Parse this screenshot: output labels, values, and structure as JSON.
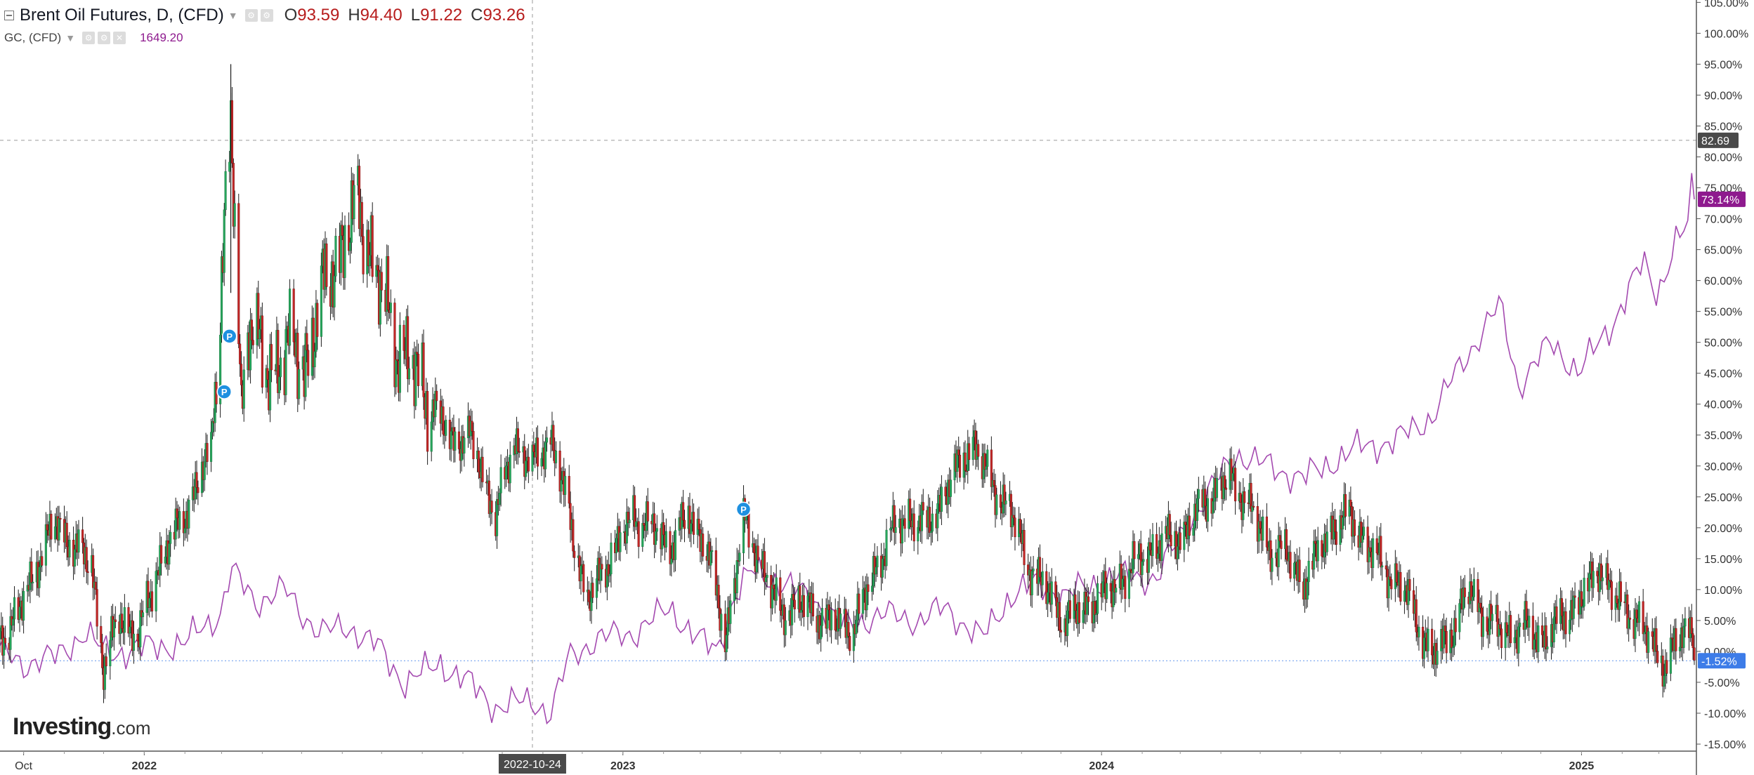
{
  "legend": {
    "main_title": "Brent Oil Futures, D, (CFD)",
    "ohlc": {
      "o_label": "O",
      "o": "93.59",
      "h_label": "H",
      "h": "94.40",
      "l_label": "L",
      "l": "91.22",
      "c_label": "C",
      "c": "93.26"
    },
    "compare_title": "GC, (CFD)",
    "compare_value": "1649.20"
  },
  "logo": {
    "text": "Investing",
    "suffix": ".com"
  },
  "crosshair": {
    "x_label": "2022-10-24",
    "y_label": "82.69"
  },
  "price_tags": {
    "gold": "73.14%",
    "brent": "-1.52%"
  },
  "colors": {
    "up": "#26a65b",
    "up_body": "#1e7a45",
    "down": "#c62828",
    "gold_line": "#a44ab0",
    "gold_tag": "#8e1a8e",
    "brent_tag": "#3d7ce8",
    "crosshair_tag": "#4a4a4a",
    "marker": "#1e90e0"
  },
  "chart_data": {
    "type": "line",
    "description_series": [
      "Brent Oil Futures (candlestick, % change)",
      "GC Gold (line, % change)"
    ],
    "y_axis": {
      "unit": "%",
      "min": -15,
      "max": 105,
      "ticks": [
        -15,
        -10,
        -5,
        0,
        5,
        10,
        15,
        20,
        25,
        30,
        35,
        40,
        45,
        50,
        55,
        60,
        65,
        70,
        75,
        80,
        85,
        90,
        95,
        100,
        105
      ],
      "tick_labels": [
        "-15.00%",
        "-10.00%",
        "-5.00%",
        "0.00%",
        "5.00%",
        "10.00%",
        "15.00%",
        "20.00%",
        "25.00%",
        "30.00%",
        "35.00%",
        "40.00%",
        "45.00%",
        "50.00%",
        "55.00%",
        "60.00%",
        "65.00%",
        "70.00%",
        "75.00%",
        "80.00%",
        "85.00%",
        "90.00%",
        "95.00%",
        "100.00%",
        "105.00%"
      ]
    },
    "x_axis": {
      "min": "2021-09-13",
      "max": "2025-03-28",
      "ticks": [
        {
          "date": "2021-10-01",
          "label": "Oct"
        },
        {
          "date": "2022-01-01",
          "label": "2022"
        },
        {
          "date": "2023-01-01",
          "label": "2023"
        },
        {
          "date": "2024-01-01",
          "label": "2024"
        },
        {
          "date": "2025-01-01",
          "label": "2025"
        }
      ]
    },
    "crosshair_date": "2022-10-24",
    "crosshair_value": 82.69,
    "reference_line": -1.52,
    "markers": [
      {
        "date": "2022-03-03",
        "value": 42,
        "label": "P"
      },
      {
        "date": "2022-03-07",
        "value": 51,
        "label": "P"
      },
      {
        "date": "2023-04-03",
        "value": 23,
        "label": "P"
      }
    ],
    "series": [
      {
        "name": "Brent Oil Futures, D, (CFD)",
        "kind": "candlestick",
        "points": [
          [
            "2021-09-13",
            2
          ],
          [
            "2021-09-27",
            6
          ],
          [
            "2021-10-11",
            14
          ],
          [
            "2021-10-25",
            21
          ],
          [
            "2021-11-08",
            17
          ],
          [
            "2021-11-22",
            14
          ],
          [
            "2021-12-01",
            -3
          ],
          [
            "2021-12-13",
            6
          ],
          [
            "2021-12-27",
            2
          ],
          [
            "2022-01-10",
            13
          ],
          [
            "2022-01-24",
            19
          ],
          [
            "2022-02-07",
            25
          ],
          [
            "2022-02-21",
            33
          ],
          [
            "2022-03-08",
            85
          ],
          [
            "2022-03-16",
            40
          ],
          [
            "2022-03-22",
            55
          ],
          [
            "2022-04-05",
            44
          ],
          [
            "2022-04-19",
            50
          ],
          [
            "2022-05-03",
            46
          ],
          [
            "2022-05-17",
            58
          ],
          [
            "2022-06-01",
            66
          ],
          [
            "2022-06-14",
            72
          ],
          [
            "2022-06-28",
            60
          ],
          [
            "2022-07-12",
            50
          ],
          [
            "2022-07-26",
            45
          ],
          [
            "2022-08-09",
            40
          ],
          [
            "2022-08-23",
            34
          ],
          [
            "2022-09-06",
            35
          ],
          [
            "2022-09-26",
            22
          ],
          [
            "2022-10-10",
            34
          ],
          [
            "2022-10-24",
            30
          ],
          [
            "2022-11-07",
            35
          ],
          [
            "2022-11-21",
            22
          ],
          [
            "2022-12-05",
            8
          ],
          [
            "2022-12-19",
            14
          ],
          [
            "2023-01-09",
            22
          ],
          [
            "2023-01-23",
            20
          ],
          [
            "2023-02-06",
            17
          ],
          [
            "2023-02-20",
            22
          ],
          [
            "2023-03-06",
            17
          ],
          [
            "2023-03-20",
            2
          ],
          [
            "2023-04-03",
            21
          ],
          [
            "2023-04-17",
            14
          ],
          [
            "2023-05-01",
            6
          ],
          [
            "2023-05-15",
            8
          ],
          [
            "2023-06-05",
            5
          ],
          [
            "2023-06-26",
            4
          ],
          [
            "2023-07-10",
            12
          ],
          [
            "2023-07-24",
            19
          ],
          [
            "2023-08-07",
            22
          ],
          [
            "2023-08-21",
            20
          ],
          [
            "2023-09-04",
            26
          ],
          [
            "2023-09-25",
            34
          ],
          [
            "2023-10-09",
            27
          ],
          [
            "2023-10-23",
            23
          ],
          [
            "2023-11-06",
            14
          ],
          [
            "2023-11-20",
            10
          ],
          [
            "2023-12-04",
            5
          ],
          [
            "2023-12-18",
            7
          ],
          [
            "2024-01-08",
            10
          ],
          [
            "2024-01-22",
            13
          ],
          [
            "2024-02-05",
            16
          ],
          [
            "2024-02-19",
            18
          ],
          [
            "2024-03-04",
            19
          ],
          [
            "2024-03-18",
            24
          ],
          [
            "2024-04-08",
            28
          ],
          [
            "2024-04-22",
            24
          ],
          [
            "2024-05-06",
            17
          ],
          [
            "2024-05-20",
            16
          ],
          [
            "2024-06-03",
            11
          ],
          [
            "2024-06-24",
            20
          ],
          [
            "2024-07-08",
            22
          ],
          [
            "2024-07-22",
            17
          ],
          [
            "2024-08-05",
            13
          ],
          [
            "2024-08-19",
            10
          ],
          [
            "2024-09-09",
            -1
          ],
          [
            "2024-09-23",
            3
          ],
          [
            "2024-10-07",
            10
          ],
          [
            "2024-10-21",
            5
          ],
          [
            "2024-11-04",
            3
          ],
          [
            "2024-11-18",
            4
          ],
          [
            "2024-12-02",
            2
          ],
          [
            "2024-12-16",
            5
          ],
          [
            "2025-01-06",
            10
          ],
          [
            "2025-01-15",
            14
          ],
          [
            "2025-01-27",
            8
          ],
          [
            "2025-02-10",
            6
          ],
          [
            "2025-02-24",
            1
          ],
          [
            "2025-03-05",
            -2
          ],
          [
            "2025-03-20",
            3
          ],
          [
            "2025-03-27",
            4
          ],
          [
            "2025-03-28",
            -1.52
          ]
        ]
      },
      {
        "name": "GC, (CFD)",
        "kind": "line",
        "points": [
          [
            "2021-09-13",
            0
          ],
          [
            "2021-10-01",
            -2
          ],
          [
            "2021-10-25",
            -1
          ],
          [
            "2021-11-16",
            3
          ],
          [
            "2021-12-01",
            0
          ],
          [
            "2021-12-20",
            0
          ],
          [
            "2022-01-10",
            1
          ],
          [
            "2022-01-31",
            1
          ],
          [
            "2022-02-14",
            4
          ],
          [
            "2022-02-28",
            6
          ],
          [
            "2022-03-08",
            13
          ],
          [
            "2022-03-28",
            8
          ],
          [
            "2022-04-18",
            10
          ],
          [
            "2022-05-02",
            6
          ],
          [
            "2022-05-16",
            3
          ],
          [
            "2022-06-06",
            4
          ],
          [
            "2022-06-27",
            1
          ],
          [
            "2022-07-18",
            -5
          ],
          [
            "2022-08-15",
            -2
          ],
          [
            "2022-09-05",
            -5
          ],
          [
            "2022-09-26",
            -9
          ],
          [
            "2022-10-24",
            -8
          ],
          [
            "2022-11-07",
            -10
          ],
          [
            "2022-11-21",
            -1
          ],
          [
            "2022-12-12",
            2
          ],
          [
            "2023-01-09",
            3
          ],
          [
            "2023-02-06",
            7
          ],
          [
            "2023-02-27",
            2
          ],
          [
            "2023-03-13",
            0
          ],
          [
            "2023-03-27",
            9
          ],
          [
            "2023-04-10",
            13
          ],
          [
            "2023-05-03",
            11
          ],
          [
            "2023-05-29",
            8
          ],
          [
            "2023-06-19",
            4
          ],
          [
            "2023-07-17",
            6
          ],
          [
            "2023-08-14",
            5
          ],
          [
            "2023-09-04",
            7
          ],
          [
            "2023-10-02",
            2
          ],
          [
            "2023-10-23",
            9
          ],
          [
            "2023-11-13",
            11
          ],
          [
            "2023-12-04",
            9
          ],
          [
            "2024-01-08",
            12
          ],
          [
            "2024-02-12",
            12
          ],
          [
            "2024-03-11",
            22
          ],
          [
            "2024-04-12",
            32
          ],
          [
            "2024-05-06",
            30
          ],
          [
            "2024-06-03",
            28
          ],
          [
            "2024-07-15",
            33
          ],
          [
            "2024-08-12",
            34
          ],
          [
            "2024-09-09",
            38
          ],
          [
            "2024-09-30",
            46
          ],
          [
            "2024-10-21",
            53
          ],
          [
            "2024-10-31",
            56
          ],
          [
            "2024-11-14",
            43
          ],
          [
            "2024-12-09",
            50
          ],
          [
            "2024-12-30",
            45
          ],
          [
            "2025-01-27",
            54
          ],
          [
            "2025-02-17",
            63
          ],
          [
            "2025-02-28",
            58
          ],
          [
            "2025-03-14",
            66
          ],
          [
            "2025-03-24",
            69
          ],
          [
            "2025-03-26",
            75
          ],
          [
            "2025-03-28",
            73.14
          ]
        ]
      }
    ]
  }
}
